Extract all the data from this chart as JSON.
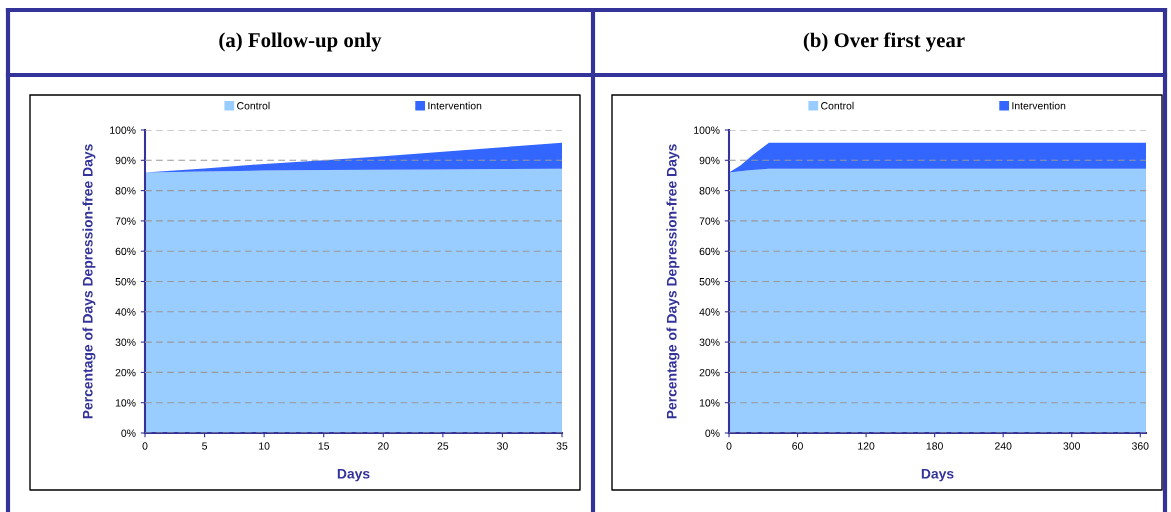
{
  "chart_data": [
    {
      "type": "area",
      "title": "(a) Follow-up only",
      "xlabel": "Days",
      "ylabel": "Percentage of Days Depression-free Days",
      "stacked": true,
      "x": [
        0,
        5,
        10,
        15,
        20,
        25,
        30,
        35
      ],
      "xlim": [
        0,
        35
      ],
      "xticks": [
        0,
        5,
        10,
        15,
        20,
        25,
        30,
        35
      ],
      "ylim": [
        0,
        100
      ],
      "yticks": [
        {
          "value": 0,
          "label": "0%"
        },
        {
          "value": 10,
          "label": "10%"
        },
        {
          "value": 20,
          "label": "20%"
        },
        {
          "value": 30,
          "label": "30%"
        },
        {
          "value": 40,
          "label": "40%"
        },
        {
          "value": 50,
          "label": "50%"
        },
        {
          "value": 60,
          "label": "60%"
        },
        {
          "value": 70,
          "label": "70%"
        },
        {
          "value": 80,
          "label": "80%"
        },
        {
          "value": 90,
          "label": "90%"
        },
        {
          "value": 100,
          "label": "100%"
        }
      ],
      "grid": "y",
      "legend": "top",
      "series": [
        {
          "name": "Control",
          "color": "#99ccff",
          "values": [
            86.0,
            86.3,
            86.6,
            86.8,
            86.9,
            87.0,
            87.1,
            87.2
          ]
        },
        {
          "name": "Intervention",
          "color": "#3366ff",
          "values": [
            0,
            1.0,
            2.2,
            3.2,
            4.4,
            5.8,
            7.2,
            8.6
          ]
        }
      ]
    },
    {
      "type": "area",
      "title": "(b) Over first year",
      "xlabel": "Days",
      "ylabel": "Percentage of Days Depression-free Days",
      "stacked": true,
      "x": [
        0,
        10,
        20,
        35,
        365
      ],
      "xlim": [
        0,
        365
      ],
      "xticks": [
        0,
        60,
        120,
        180,
        240,
        300,
        360
      ],
      "ylim": [
        0,
        100
      ],
      "yticks": [
        {
          "value": 0,
          "label": "0%"
        },
        {
          "value": 10,
          "label": "10%"
        },
        {
          "value": 20,
          "label": "20%"
        },
        {
          "value": 30,
          "label": "30%"
        },
        {
          "value": 40,
          "label": "40%"
        },
        {
          "value": 50,
          "label": "50%"
        },
        {
          "value": 60,
          "label": "60%"
        },
        {
          "value": 70,
          "label": "70%"
        },
        {
          "value": 80,
          "label": "80%"
        },
        {
          "value": 90,
          "label": "90%"
        },
        {
          "value": 100,
          "label": "100%"
        }
      ],
      "grid": "y",
      "legend": "top",
      "series": [
        {
          "name": "Control",
          "color": "#99ccff",
          "values": [
            86.0,
            86.4,
            86.8,
            87.2,
            87.2
          ]
        },
        {
          "name": "Intervention",
          "color": "#3366ff",
          "values": [
            0,
            1.9,
            4.7,
            8.6,
            8.6
          ]
        }
      ]
    }
  ]
}
